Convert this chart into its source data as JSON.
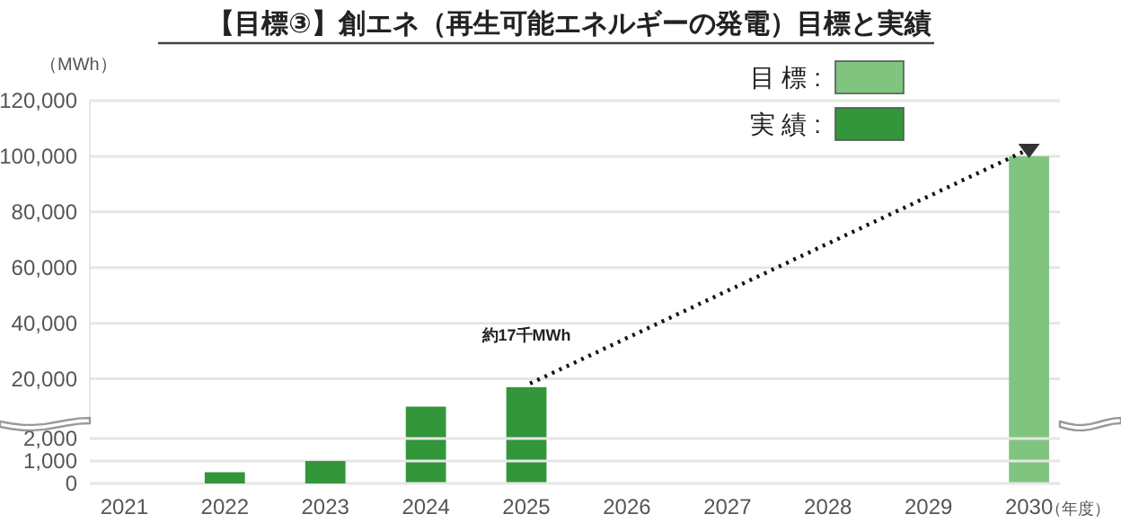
{
  "chart_data": [
    {
      "type": "bar",
      "title": "【目標③】創エネ（再生可能エネルギーの発電）目標と実績",
      "ylabel": "（MWh）",
      "categories": [
        "2021",
        "2022",
        "2023",
        "2024",
        "2025",
        "2026",
        "2027",
        "2028",
        "2029",
        "2030"
      ],
      "series": [
        {
          "name": "目 標 :",
          "color": "#80c480",
          "values": [
            null,
            null,
            null,
            null,
            null,
            null,
            null,
            null,
            null,
            100000
          ]
        },
        {
          "name": "実 績 :",
          "color": "#33963a",
          "values": [
            null,
            null,
            null,
            10000,
            17000,
            null,
            null,
            null,
            null,
            null
          ]
        }
      ],
      "ylim": [
        5000,
        120000
      ],
      "yticks": [
        {
          "value": 20000,
          "label": "20,000"
        },
        {
          "value": 40000,
          "label": "40,000"
        },
        {
          "value": 60000,
          "label": "60,000"
        },
        {
          "value": 80000,
          "label": "80,000"
        },
        {
          "value": 100000,
          "label": "100,000"
        },
        {
          "value": 120000,
          "label": "120,000"
        }
      ],
      "tick_labels": "y",
      "grid": "y",
      "legend": "top right",
      "annotations": [
        {
          "text": "約17千MWh",
          "x": "2025",
          "y": 17000
        }
      ]
    },
    {
      "type": "bar",
      "xlabel": "（年度）",
      "categories": [
        "2021",
        "2022",
        "2023",
        "2024",
        "2025",
        "2026",
        "2027",
        "2028",
        "2029",
        "2030"
      ],
      "series": [
        {
          "color": "#33963a",
          "values": [
            null,
            500,
            1000,
            null,
            null,
            null,
            null,
            null,
            null,
            null
          ]
        }
      ],
      "ylim": [
        0,
        2000
      ],
      "yticks": [
        {
          "value": 0,
          "label": "0"
        },
        {
          "value": 1000,
          "label": "1,000"
        },
        {
          "value": 2000,
          "label": "2,000"
        }
      ],
      "grid": "y"
    }
  ]
}
